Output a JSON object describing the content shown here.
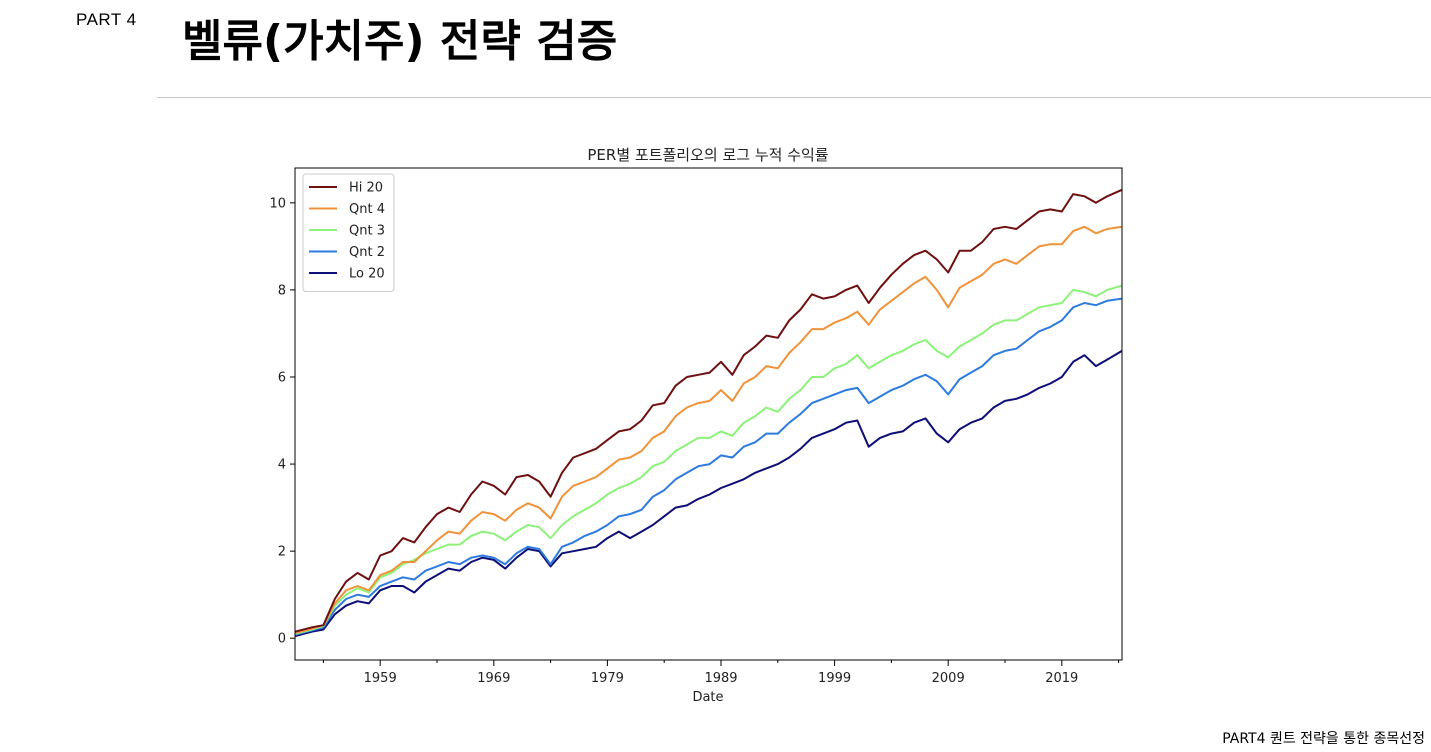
{
  "header": {
    "part_label": "PART 4",
    "title": "벨류(가치주) 전략 검증"
  },
  "footer": {
    "text": "PART4 퀀트 전략을 통한 종목선정"
  },
  "chart_data": {
    "type": "line",
    "title": "PER별 포트폴리오의 로그 누적 수익률",
    "xlabel": "Date",
    "ylabel": "",
    "xlim": [
      1951.5,
      2024.3
    ],
    "ylim": [
      -0.5,
      10.8
    ],
    "x_ticks": [
      1959,
      1969,
      1979,
      1989,
      1999,
      2009,
      2019
    ],
    "y_ticks": [
      0,
      2,
      4,
      6,
      8,
      10
    ],
    "grid": false,
    "legend": "top-left",
    "x": [
      1951.5,
      1953,
      1954,
      1955,
      1956,
      1957,
      1958,
      1959,
      1960,
      1961,
      1962,
      1963,
      1964,
      1965,
      1966,
      1967,
      1968,
      1969,
      1970,
      1971,
      1972,
      1973,
      1974,
      1975,
      1976,
      1977,
      1978,
      1979,
      1980,
      1981,
      1982,
      1983,
      1984,
      1985,
      1986,
      1987,
      1988,
      1989,
      1990,
      1991,
      1992,
      1993,
      1994,
      1995,
      1996,
      1997,
      1998,
      1999,
      2000,
      2001,
      2002,
      2003,
      2004,
      2005,
      2006,
      2007,
      2008,
      2009,
      2010,
      2011,
      2012,
      2013,
      2014,
      2015,
      2016,
      2017,
      2018,
      2019,
      2020,
      2021,
      2022,
      2023,
      2024.3
    ],
    "series": [
      {
        "name": "Hi 20",
        "color": "#6e1010",
        "values": [
          0.15,
          0.25,
          0.3,
          0.9,
          1.3,
          1.5,
          1.35,
          1.9,
          2.0,
          2.3,
          2.2,
          2.55,
          2.85,
          3.0,
          2.9,
          3.3,
          3.6,
          3.5,
          3.3,
          3.7,
          3.75,
          3.6,
          3.25,
          3.8,
          4.15,
          4.25,
          4.35,
          4.55,
          4.75,
          4.8,
          5.0,
          5.35,
          5.4,
          5.8,
          6.0,
          6.05,
          6.1,
          6.35,
          6.05,
          6.5,
          6.7,
          6.95,
          6.9,
          7.3,
          7.55,
          7.9,
          7.8,
          7.85,
          8.0,
          8.1,
          7.7,
          8.05,
          8.35,
          8.6,
          8.8,
          8.9,
          8.7,
          8.4,
          8.9,
          8.9,
          9.1,
          9.4,
          9.45,
          9.4,
          9.6,
          9.8,
          9.85,
          9.8,
          10.2,
          10.15,
          10.0,
          10.15,
          10.3
        ]
      },
      {
        "name": "Qnt 4",
        "color": "#f0923a",
        "values": [
          0.12,
          0.22,
          0.3,
          0.8,
          1.1,
          1.2,
          1.1,
          1.45,
          1.55,
          1.75,
          1.75,
          2.0,
          2.25,
          2.45,
          2.4,
          2.7,
          2.9,
          2.85,
          2.7,
          2.95,
          3.1,
          3.0,
          2.75,
          3.25,
          3.5,
          3.6,
          3.7,
          3.9,
          4.1,
          4.15,
          4.3,
          4.6,
          4.75,
          5.1,
          5.3,
          5.4,
          5.45,
          5.7,
          5.45,
          5.85,
          6.0,
          6.25,
          6.2,
          6.55,
          6.8,
          7.1,
          7.1,
          7.25,
          7.35,
          7.5,
          7.2,
          7.55,
          7.75,
          7.95,
          8.15,
          8.3,
          8.0,
          7.6,
          8.05,
          8.2,
          8.35,
          8.6,
          8.7,
          8.6,
          8.8,
          9.0,
          9.05,
          9.05,
          9.35,
          9.45,
          9.3,
          9.4,
          9.45
        ]
      },
      {
        "name": "Qnt 3",
        "color": "#8cf27a",
        "values": [
          0.1,
          0.2,
          0.28,
          0.75,
          1.0,
          1.15,
          1.05,
          1.4,
          1.5,
          1.7,
          1.8,
          1.95,
          2.05,
          2.15,
          2.15,
          2.35,
          2.45,
          2.4,
          2.25,
          2.45,
          2.6,
          2.55,
          2.3,
          2.6,
          2.8,
          2.95,
          3.1,
          3.3,
          3.45,
          3.55,
          3.7,
          3.95,
          4.05,
          4.3,
          4.45,
          4.6,
          4.6,
          4.75,
          4.65,
          4.95,
          5.1,
          5.3,
          5.2,
          5.5,
          5.7,
          6.0,
          6.0,
          6.2,
          6.3,
          6.5,
          6.2,
          6.35,
          6.5,
          6.6,
          6.75,
          6.85,
          6.6,
          6.45,
          6.7,
          6.85,
          7.0,
          7.2,
          7.3,
          7.3,
          7.45,
          7.6,
          7.65,
          7.7,
          8.0,
          7.95,
          7.85,
          8.0,
          8.1
        ]
      },
      {
        "name": "Qnt 2",
        "color": "#2e7be0",
        "values": [
          0.08,
          0.18,
          0.25,
          0.65,
          0.9,
          1.0,
          0.95,
          1.2,
          1.3,
          1.4,
          1.35,
          1.55,
          1.65,
          1.75,
          1.7,
          1.85,
          1.9,
          1.85,
          1.7,
          1.95,
          2.1,
          2.05,
          1.7,
          2.1,
          2.2,
          2.35,
          2.45,
          2.6,
          2.8,
          2.85,
          2.95,
          3.25,
          3.4,
          3.65,
          3.8,
          3.95,
          4.0,
          4.2,
          4.15,
          4.4,
          4.5,
          4.7,
          4.7,
          4.95,
          5.15,
          5.4,
          5.5,
          5.6,
          5.7,
          5.75,
          5.4,
          5.55,
          5.7,
          5.8,
          5.95,
          6.05,
          5.9,
          5.6,
          5.95,
          6.1,
          6.25,
          6.5,
          6.6,
          6.65,
          6.85,
          7.05,
          7.15,
          7.3,
          7.6,
          7.7,
          7.65,
          7.75,
          7.8
        ]
      },
      {
        "name": "Lo 20",
        "color": "#0e0e78",
        "values": [
          0.05,
          0.15,
          0.2,
          0.55,
          0.75,
          0.85,
          0.8,
          1.1,
          1.2,
          1.2,
          1.05,
          1.3,
          1.45,
          1.6,
          1.55,
          1.75,
          1.85,
          1.8,
          1.6,
          1.85,
          2.05,
          2.0,
          1.65,
          1.95,
          2.0,
          2.05,
          2.1,
          2.3,
          2.45,
          2.3,
          2.45,
          2.6,
          2.8,
          3.0,
          3.05,
          3.2,
          3.3,
          3.45,
          3.55,
          3.65,
          3.8,
          3.9,
          4.0,
          4.15,
          4.35,
          4.6,
          4.7,
          4.8,
          4.95,
          5.0,
          4.4,
          4.6,
          4.7,
          4.75,
          4.95,
          5.05,
          4.7,
          4.5,
          4.8,
          4.95,
          5.05,
          5.3,
          5.45,
          5.5,
          5.6,
          5.75,
          5.85,
          6.0,
          6.35,
          6.5,
          6.25,
          6.4,
          6.6
        ]
      }
    ]
  }
}
